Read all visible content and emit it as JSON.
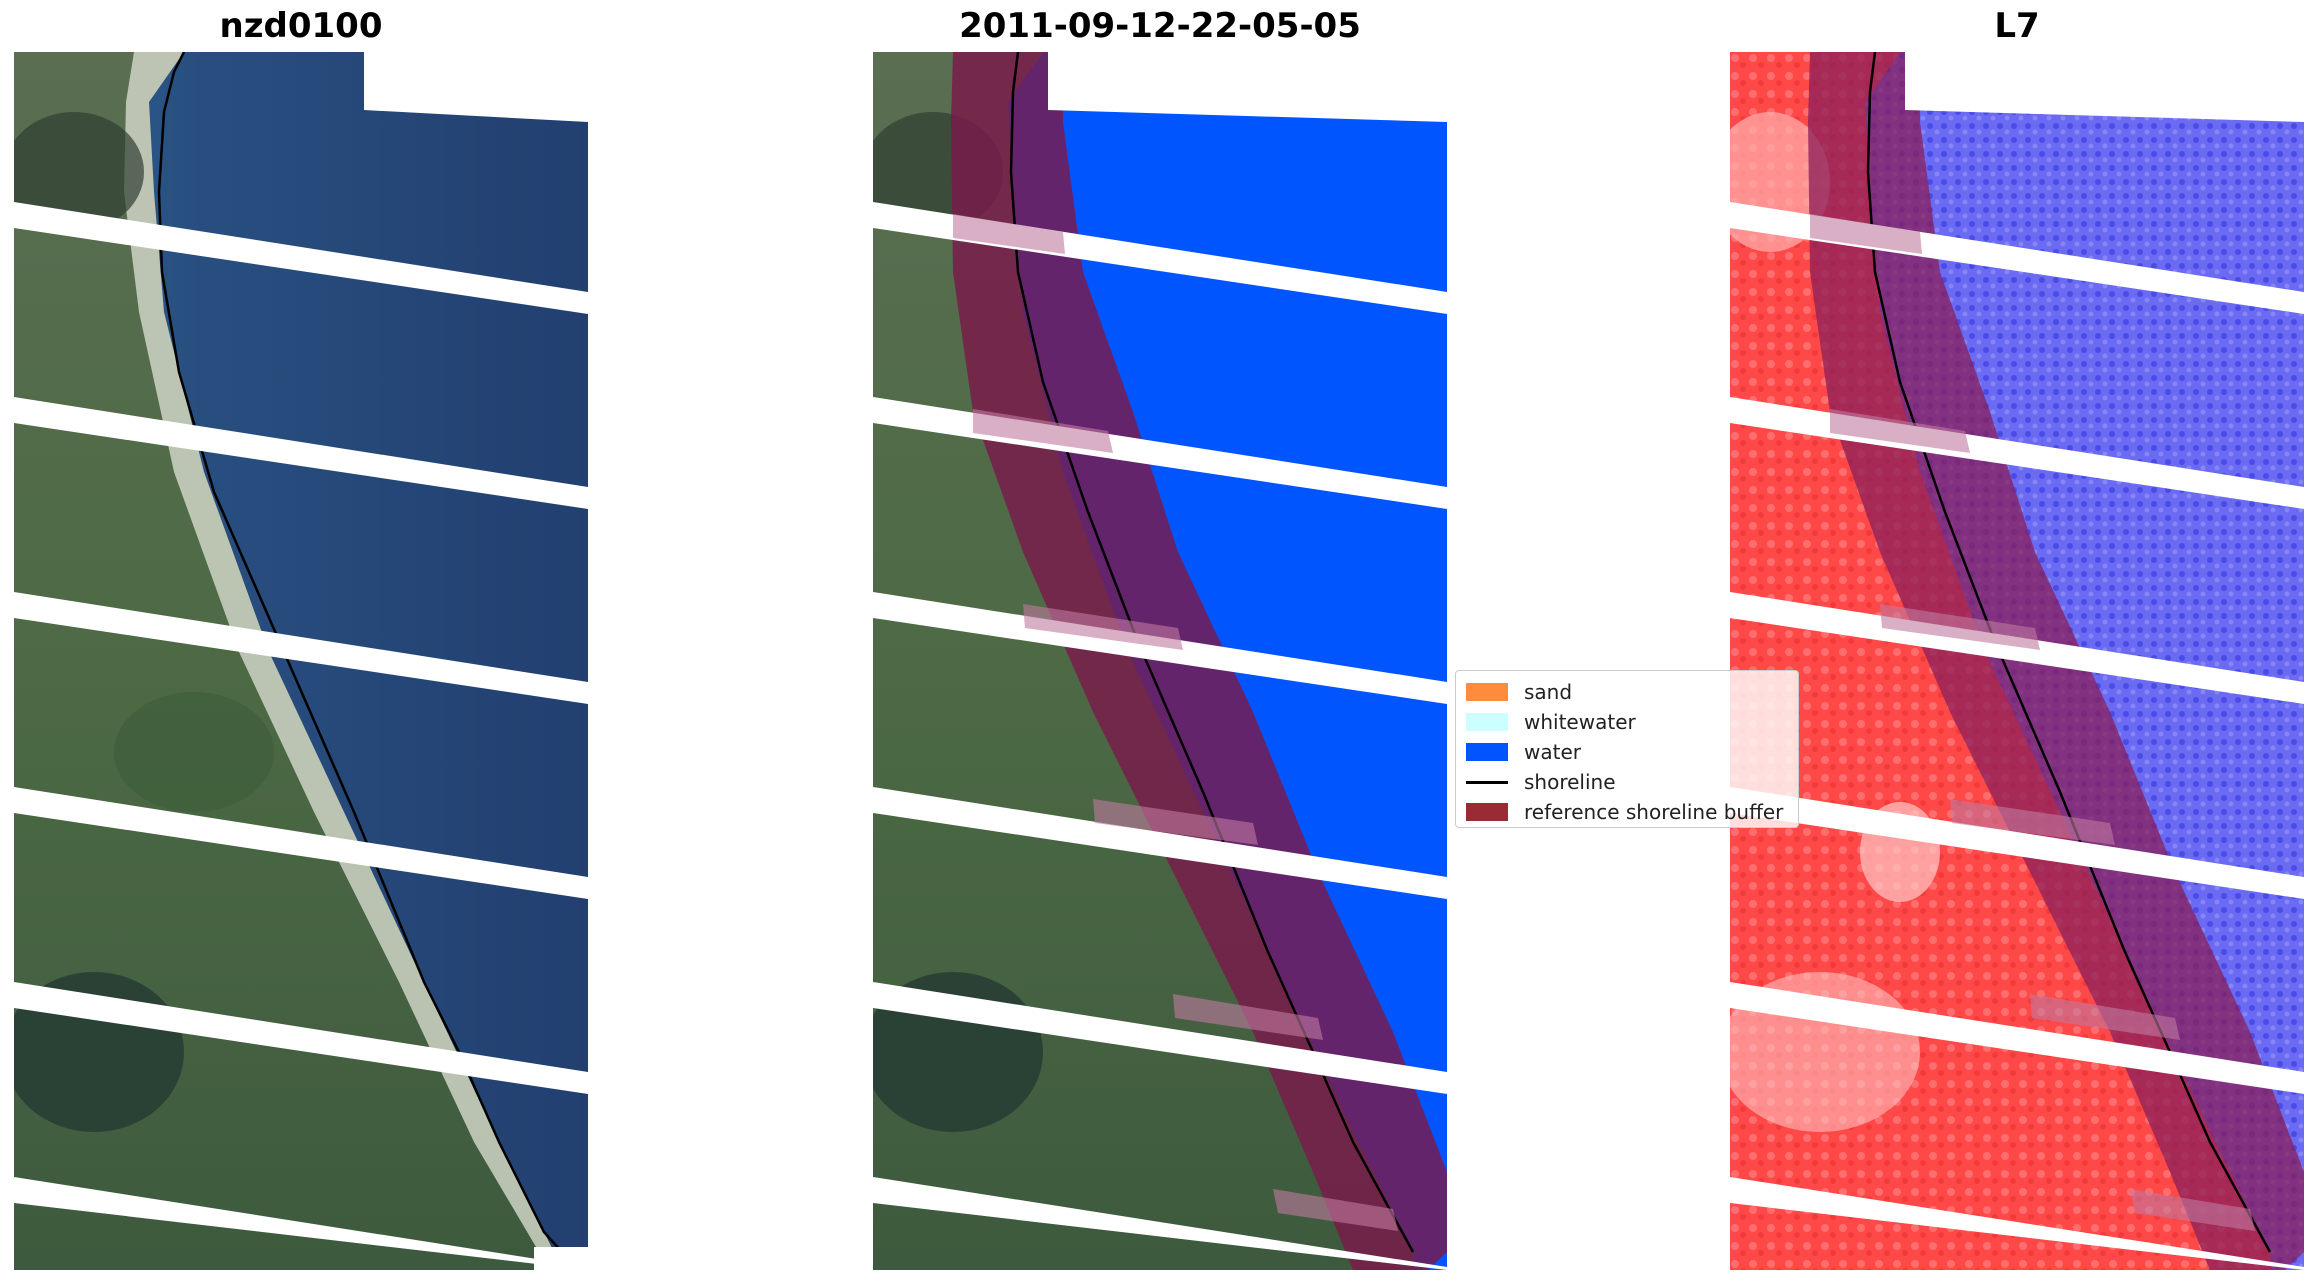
{
  "figure": {
    "titles": {
      "left": "nzd0100",
      "middle": "2011-09-12-22-05-05",
      "right": "L7"
    }
  },
  "legend": {
    "items": [
      {
        "label": "sand",
        "kind": "patch",
        "color": "#ff8c3c"
      },
      {
        "label": "whitewater",
        "kind": "patch",
        "color": "#ccffff"
      },
      {
        "label": "water",
        "kind": "patch",
        "color": "#0055ff"
      },
      {
        "label": "shoreline",
        "kind": "line",
        "color": "#000000"
      },
      {
        "label": "reference shoreline buffer",
        "kind": "patch",
        "color": "#9a2a33"
      }
    ]
  },
  "colors": {
    "ocean": "#264c7e",
    "land": "#4f6d4c",
    "beach": "#d8dcd2",
    "water_class": "#0055ff",
    "buffer": "#8a1f3a",
    "index_land": "#ff4a4a",
    "index_water": "#4a4aff",
    "scanline_gap": "#ffffff",
    "shoreline": "#000000"
  }
}
